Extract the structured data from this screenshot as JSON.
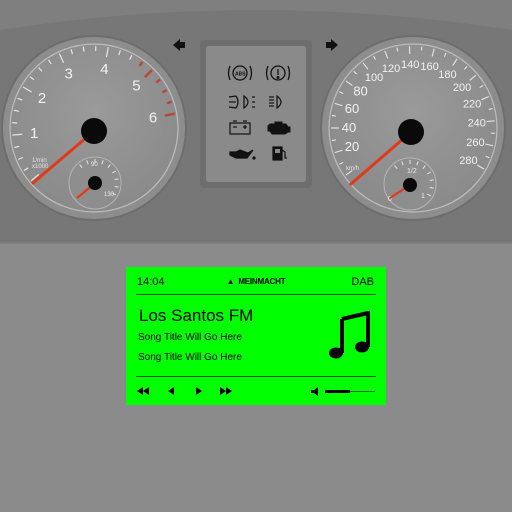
{
  "cluster": {
    "tachometer": {
      "labels": [
        "1",
        "2",
        "3",
        "4",
        "5",
        "6"
      ],
      "unit_line1": "1/min",
      "unit_line2": "x1000",
      "needle": "red",
      "sub_gauge": {
        "labels": [
          "90",
          "130"
        ]
      }
    },
    "speedometer": {
      "labels": [
        "20",
        "40",
        "60",
        "80",
        "100",
        "120",
        "140",
        "160",
        "180",
        "200",
        "220",
        "240",
        "260",
        "280"
      ],
      "unit": "km/h",
      "sub_gauge": {
        "labels": [
          "0",
          "1/2",
          "1"
        ]
      }
    },
    "arrows": {
      "left": "left-turn-arrow-icon",
      "right": "right-turn-arrow-icon"
    },
    "warning_lights": [
      {
        "name": "abs-warning-icon",
        "text": "ABS"
      },
      {
        "name": "brake-warning-icon",
        "text": "(!)"
      },
      {
        "name": "fog-light-icon"
      },
      {
        "name": "high-beam-icon"
      },
      {
        "name": "battery-warning-icon"
      },
      {
        "name": "engine-warning-icon"
      },
      {
        "name": "oil-pressure-icon"
      },
      {
        "name": "fuel-level-icon"
      }
    ]
  },
  "radio": {
    "time": "14:04",
    "brand": "MEINMACHT",
    "band": "DAB",
    "station": "Los Santos FM",
    "song_line_1": "Song Title Will Go Here",
    "song_line_2": "Song Title Will Go Here",
    "volume_level": 0.5,
    "controls": [
      "rewind-icon",
      "previous-icon",
      "play-icon",
      "fast-forward-icon"
    ],
    "accent": "#00ff00"
  }
}
